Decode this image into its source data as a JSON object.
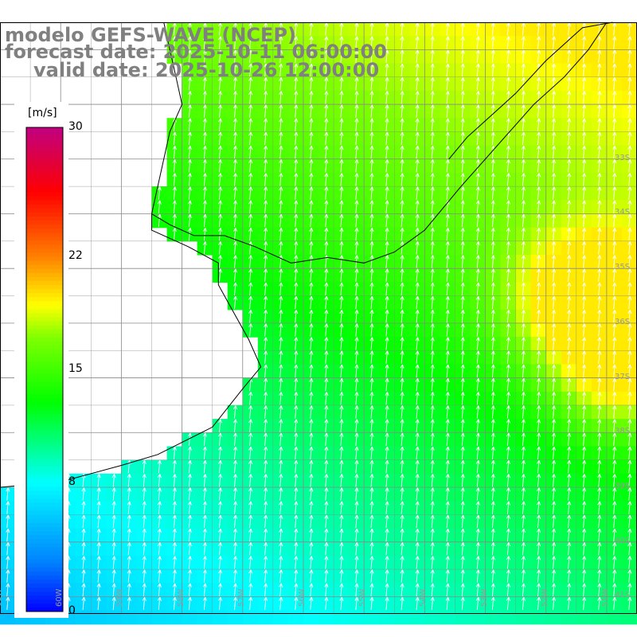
{
  "title": {
    "line1": "modelo GEFS-WAVE (NCEP)",
    "line2": "forecast date: 2025-10-11 06:00:00",
    "line3": "valid date: 2025-10-26 12:00:00"
  },
  "colorbar": {
    "unit": "[m/s]",
    "ticks": [
      {
        "value": 30,
        "label": "30"
      },
      {
        "value": 22,
        "label": "22"
      },
      {
        "value": 15,
        "label": "15"
      },
      {
        "value": 8,
        "label": "8"
      },
      {
        "value": 0,
        "label": "0"
      }
    ],
    "min": 0,
    "max": 30,
    "colors": [
      "#0000ff",
      "#0080ff",
      "#00ffff",
      "#00ff00",
      "#80ff00",
      "#ffff00",
      "#ff8000",
      "#ff0000",
      "#c00080"
    ]
  },
  "map": {
    "lon_range": [
      -61.0,
      -50.5
    ],
    "lat_range": [
      -41.3,
      -30.5
    ],
    "lat_labels": [
      "33S",
      "34S",
      "35S",
      "36S",
      "37S",
      "38S",
      "39S",
      "40S",
      "41S"
    ],
    "lon_labels": [
      "61W",
      "60W",
      "59W",
      "58W",
      "57W",
      "56W",
      "55W",
      "54W",
      "53W",
      "52W",
      "51W"
    ],
    "wind_direction_deg_to": 5,
    "coast": [
      [
        -58.3,
        -30.5
      ],
      [
        -58.2,
        -31.0
      ],
      [
        -58.1,
        -31.5
      ],
      [
        -58.0,
        -32.0
      ],
      [
        -58.2,
        -32.5
      ],
      [
        -58.3,
        -33.0
      ],
      [
        -58.4,
        -33.5
      ],
      [
        -58.5,
        -34.0
      ],
      [
        -58.2,
        -34.2
      ],
      [
        -57.8,
        -34.4
      ],
      [
        -57.3,
        -34.4
      ],
      [
        -56.8,
        -34.6
      ],
      [
        -56.2,
        -34.9
      ],
      [
        -55.6,
        -34.8
      ],
      [
        -55.0,
        -34.9
      ],
      [
        -54.5,
        -34.7
      ],
      [
        -54.0,
        -34.3
      ],
      [
        -53.7,
        -33.9
      ],
      [
        -53.4,
        -33.5
      ],
      [
        -53.0,
        -33.0
      ],
      [
        -52.6,
        -32.5
      ],
      [
        -52.2,
        -32.0
      ],
      [
        -51.7,
        -31.5
      ],
      [
        -51.3,
        -31.0
      ],
      [
        -51.0,
        -30.5
      ]
    ],
    "coast2": [
      [
        -58.5,
        -34.0
      ],
      [
        -58.5,
        -34.3
      ],
      [
        -57.9,
        -34.6
      ],
      [
        -57.4,
        -34.9
      ],
      [
        -57.4,
        -35.3
      ],
      [
        -57.2,
        -35.7
      ],
      [
        -56.9,
        -36.3
      ],
      [
        -56.7,
        -36.8
      ],
      [
        -57.0,
        -37.2
      ],
      [
        -57.5,
        -37.9
      ],
      [
        -58.4,
        -38.4
      ],
      [
        -59.0,
        -38.6
      ],
      [
        -60.0,
        -38.9
      ],
      [
        -61.0,
        -39.0
      ]
    ],
    "lagoon": [
      [
        -53.6,
        -33.0
      ],
      [
        -53.3,
        -32.6
      ],
      [
        -53.0,
        -32.3
      ],
      [
        -52.5,
        -31.8
      ],
      [
        -52.0,
        -31.2
      ],
      [
        -51.4,
        -30.6
      ],
      [
        -50.9,
        -30.5
      ]
    ]
  }
}
